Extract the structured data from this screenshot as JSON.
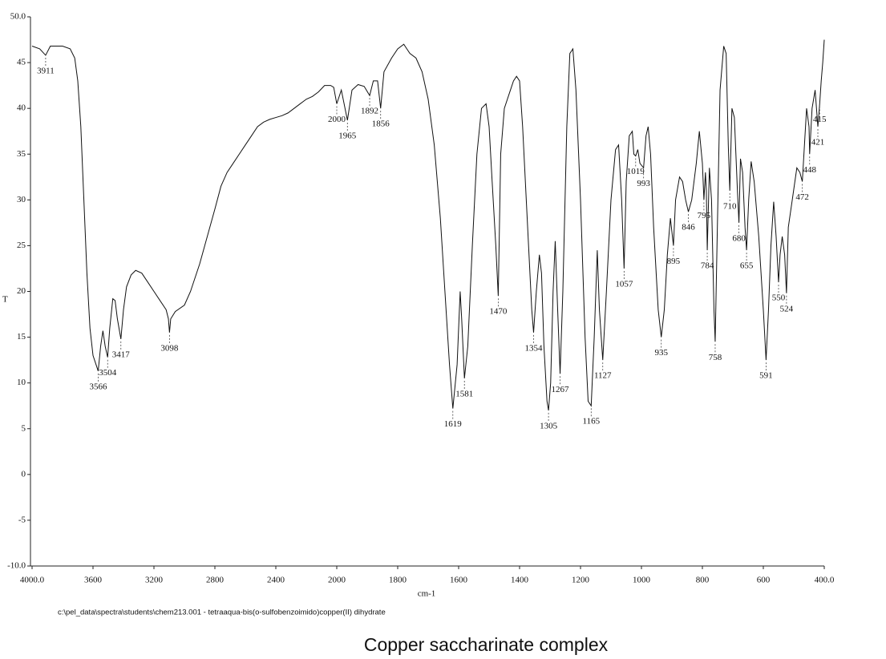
{
  "chart_data": {
    "type": "line",
    "xlabel": "cm-1",
    "ylabel": "T",
    "footer": "c:\\pel_data\\spectra\\students\\chem213.001 - tetraaqua-bis(o-sulfobenzoimido)copper(II) dihydrate",
    "caption": "Copper saccharinate complex",
    "xscale": "tick-spaced",
    "xlim": [
      4000,
      400
    ],
    "ylim": [
      -10,
      50
    ],
    "xticks": [
      {
        "value": 4000,
        "label": "4000.0"
      },
      3600,
      3200,
      2800,
      2400,
      2000,
      1800,
      1600,
      1400,
      1200,
      1000,
      800,
      600,
      {
        "value": 400,
        "label": "400.0"
      }
    ],
    "yticks": [
      {
        "value": -10,
        "label": "-10.0"
      },
      -5,
      0,
      5,
      10,
      15,
      20,
      25,
      30,
      35,
      40,
      45,
      {
        "value": 50,
        "label": "50.0"
      }
    ],
    "color": "#111111",
    "x": [
      4000,
      3950,
      3911,
      3880,
      3800,
      3750,
      3720,
      3700,
      3680,
      3660,
      3640,
      3620,
      3600,
      3580,
      3566,
      3550,
      3535,
      3520,
      3504,
      3490,
      3470,
      3455,
      3440,
      3417,
      3400,
      3380,
      3350,
      3320,
      3280,
      3240,
      3200,
      3160,
      3120,
      3105,
      3098,
      3090,
      3060,
      3000,
      2960,
      2900,
      2850,
      2800,
      2760,
      2720,
      2680,
      2640,
      2600,
      2560,
      2520,
      2480,
      2440,
      2400,
      2360,
      2320,
      2280,
      2240,
      2200,
      2160,
      2120,
      2080,
      2040,
      2020,
      2000,
      1985,
      1965,
      1950,
      1930,
      1910,
      1892,
      1880,
      1866,
      1856,
      1845,
      1820,
      1800,
      1780,
      1760,
      1740,
      1720,
      1700,
      1680,
      1660,
      1645,
      1630,
      1619,
      1605,
      1595,
      1590,
      1581,
      1570,
      1555,
      1540,
      1525,
      1510,
      1500,
      1490,
      1478,
      1470,
      1462,
      1450,
      1420,
      1410,
      1400,
      1390,
      1375,
      1360,
      1354,
      1345,
      1335,
      1328,
      1320,
      1310,
      1305,
      1298,
      1290,
      1283,
      1275,
      1267,
      1258,
      1245,
      1235,
      1225,
      1215,
      1200,
      1185,
      1175,
      1165,
      1155,
      1145,
      1138,
      1127,
      1115,
      1100,
      1085,
      1075,
      1065,
      1057,
      1050,
      1040,
      1030,
      1025,
      1019,
      1012,
      1005,
      993,
      985,
      978,
      970,
      960,
      945,
      935,
      925,
      915,
      905,
      895,
      888,
      875,
      865,
      855,
      846,
      835,
      820,
      810,
      800,
      795,
      790,
      787,
      784,
      777,
      770,
      762,
      758,
      752,
      742,
      730,
      722,
      715,
      710,
      703,
      695,
      685,
      680,
      675,
      668,
      660,
      655,
      648,
      640,
      630,
      615,
      600,
      591,
      583,
      575,
      566,
      558,
      550,
      545,
      538,
      530,
      524,
      518,
      505,
      490,
      480,
      472,
      465,
      458,
      450,
      448,
      440,
      430,
      421,
      415,
      410,
      405,
      400
    ],
    "values": [
      46.8,
      46.5,
      45.8,
      46.8,
      46.8,
      46.5,
      45.5,
      43,
      38,
      30,
      22,
      16,
      13,
      12,
      11.3,
      14,
      15.7,
      14,
      12.8,
      16,
      19.2,
      19,
      17,
      14.8,
      18,
      20.5,
      21.8,
      22.3,
      22,
      21,
      20,
      19,
      18,
      17,
      15.5,
      17,
      17.8,
      18.5,
      20,
      23,
      26,
      29,
      31.5,
      33,
      34,
      35,
      36,
      37,
      38,
      38.5,
      38.8,
      39,
      39.2,
      39.5,
      40,
      40.5,
      41,
      41.3,
      41.8,
      42.5,
      42.5,
      42.3,
      40.5,
      42,
      38.7,
      42,
      42.6,
      42.4,
      41.4,
      43,
      43,
      40,
      44,
      45.5,
      46.5,
      47,
      46,
      45.5,
      44,
      41,
      36,
      28,
      20,
      12,
      7.2,
      12,
      20,
      17,
      10.5,
      14,
      25,
      35,
      40,
      40.5,
      38,
      32,
      25,
      19.5,
      35,
      40,
      43,
      43.5,
      43,
      38,
      28,
      18,
      15.5,
      20,
      24,
      22,
      14,
      8,
      7,
      10,
      20,
      25.5,
      18,
      11,
      20,
      38,
      46,
      46.5,
      42,
      30,
      15,
      8,
      7.5,
      15,
      24.5,
      18,
      12.5,
      20,
      30,
      35.5,
      36,
      30,
      22.5,
      32,
      37,
      37.5,
      35,
      34.8,
      35.5,
      34,
      33.5,
      37,
      38,
      35,
      27,
      18,
      15,
      18,
      24,
      28,
      25,
      30,
      32.5,
      32,
      30,
      28.7,
      30,
      34,
      37.5,
      34,
      30,
      33,
      31,
      24.5,
      33.5,
      30,
      18,
      14.5,
      25,
      42,
      46.8,
      46,
      36,
      31,
      40,
      39,
      31,
      27.5,
      34.5,
      33,
      27,
      24.5,
      30,
      34.2,
      32,
      26,
      18,
      12.5,
      18,
      25,
      29.8,
      26,
      21,
      24,
      26,
      24,
      19.8,
      27,
      30,
      33.5,
      33,
      32,
      36,
      40,
      38,
      35,
      40,
      42,
      38,
      40.5,
      43,
      45,
      47.5
    ],
    "peaks": {
      "x": [
        3911,
        3566,
        3504,
        3417,
        3098,
        2000,
        1965,
        1892,
        1856,
        1619,
        1581,
        1470,
        1354,
        1305,
        1267,
        1165,
        1127,
        1057,
        1019,
        993,
        935,
        895,
        846,
        795,
        784,
        758,
        710,
        680,
        655,
        591,
        550,
        524,
        472,
        448,
        421,
        415
      ],
      "y": [
        45.8,
        11.3,
        12.8,
        14.8,
        15.5,
        40.5,
        38.7,
        41.4,
        40,
        7.2,
        10.5,
        19.5,
        15.5,
        7,
        11,
        7.5,
        12.5,
        22.5,
        34.8,
        33.5,
        15,
        25,
        28.7,
        30,
        24.5,
        14.5,
        31,
        27.5,
        24.5,
        12.5,
        21,
        19.8,
        32,
        35,
        38,
        40.5
      ]
    }
  }
}
